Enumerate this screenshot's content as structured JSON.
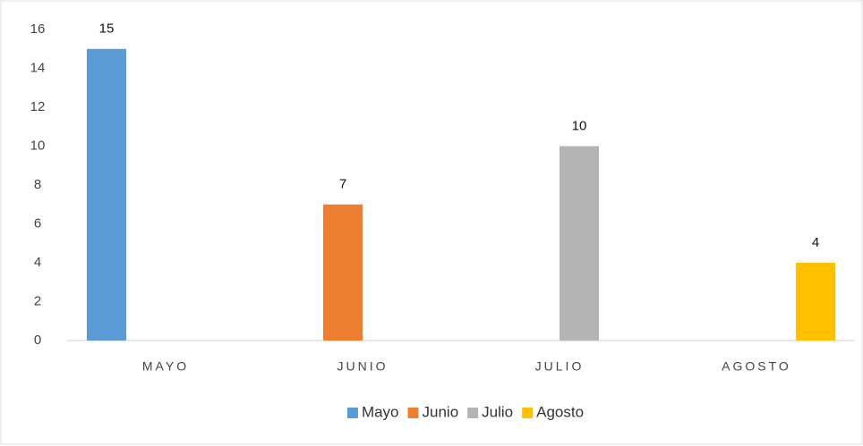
{
  "chart_data": {
    "type": "bar",
    "categories": [
      "MAYO",
      "JUNIO",
      "JULIO",
      "AGOSTO"
    ],
    "series": [
      {
        "name": "Mayo",
        "color": "#5b9bd5",
        "values": [
          15,
          null,
          null,
          null
        ]
      },
      {
        "name": "Junio",
        "color": "#ed7d31",
        "values": [
          null,
          7,
          null,
          null
        ]
      },
      {
        "name": "Julio",
        "color": "#b4b4b4",
        "values": [
          null,
          null,
          10,
          null
        ]
      },
      {
        "name": "Agosto",
        "color": "#ffc000",
        "values": [
          null,
          null,
          null,
          4
        ]
      }
    ],
    "ylim": [
      0,
      16
    ],
    "yticks": [
      0,
      2,
      4,
      6,
      8,
      10,
      12,
      14,
      16
    ],
    "grid": false,
    "legend": "bottom"
  }
}
